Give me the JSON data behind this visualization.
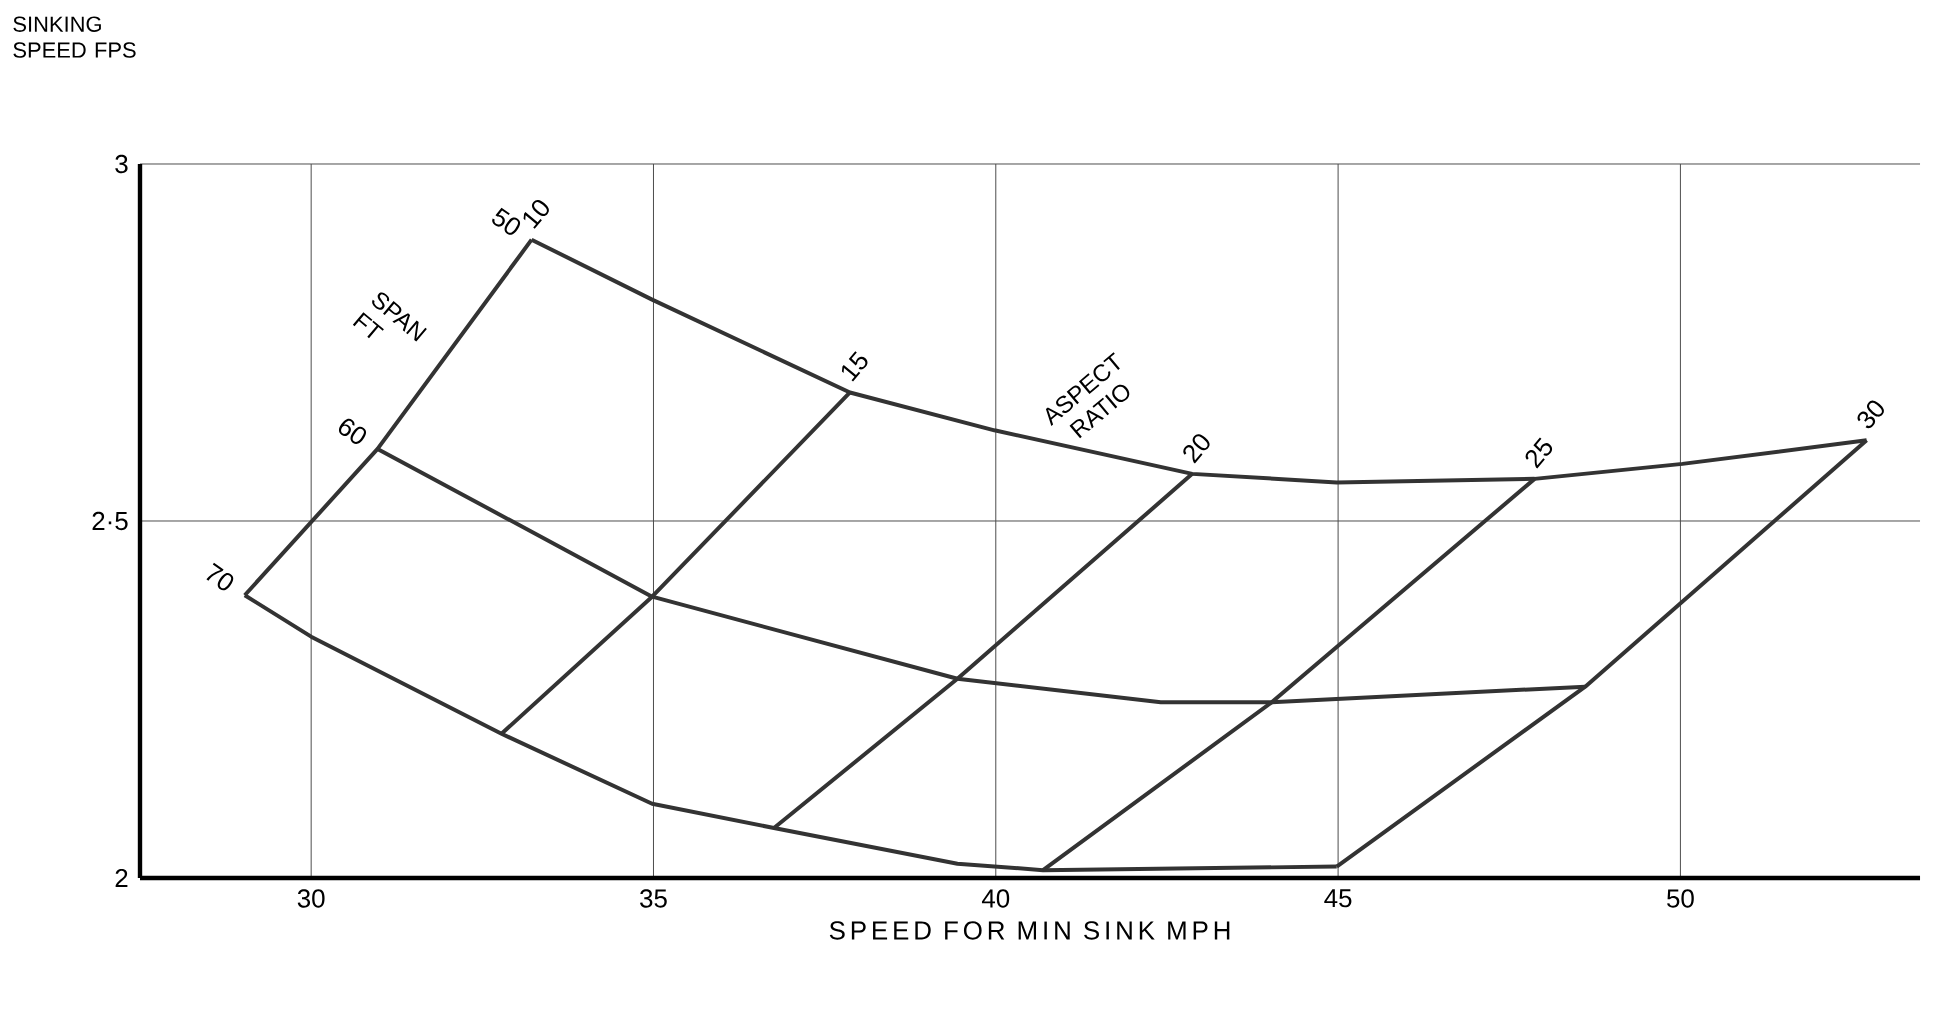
{
  "chart_data": {
    "type": "line",
    "xlabel": "SPEED FOR MIN SINK MPH",
    "ylabel": "SINKING SPEED FPS",
    "xlim": [
      27.5,
      53.5
    ],
    "ylim": [
      2,
      3
    ],
    "xticks": [
      30,
      35,
      40,
      45,
      50
    ],
    "yticks": [
      2,
      {
        "value": 2.5,
        "label": "2·5"
      },
      3
    ],
    "grid": true,
    "annotations": [
      "SPAN FT",
      "ASPECT RATIO"
    ],
    "series": [
      {
        "name": "50",
        "color": "#333333",
        "x": [
          33.22,
          34.98,
          37.87,
          39.98,
          42.87,
          44.98,
          47.87,
          50.03,
          52.72
        ],
        "values": [
          2.894,
          2.81,
          2.68,
          2.627,
          2.566,
          2.554,
          2.559,
          2.58,
          2.613
        ]
      },
      {
        "name": "60",
        "color": "#333333",
        "x": [
          30.97,
          34.98,
          39.44,
          42.41,
          44.03,
          48.61
        ],
        "values": [
          2.601,
          2.394,
          2.279,
          2.246,
          2.246,
          2.268
        ]
      },
      {
        "name": "70",
        "color": "#333333",
        "x": [
          29.03,
          30.0,
          32.78,
          34.98,
          36.76,
          39.44,
          40.69,
          44.98
        ],
        "values": [
          2.396,
          2.338,
          2.202,
          2.104,
          2.07,
          2.02,
          2.011,
          2.016
        ]
      },
      {
        "name": "10",
        "color": "#333333",
        "x": [
          33.22,
          30.97,
          29.03
        ],
        "values": [
          2.894,
          2.601,
          2.396
        ]
      },
      {
        "name": "15",
        "color": "#333333",
        "x": [
          37.87,
          34.98,
          32.78
        ],
        "values": [
          2.68,
          2.394,
          2.202
        ]
      },
      {
        "name": "20",
        "color": "#333333",
        "x": [
          42.87,
          39.44,
          36.76
        ],
        "values": [
          2.566,
          2.279,
          2.07
        ]
      },
      {
        "name": "25",
        "color": "#333333",
        "x": [
          47.87,
          44.03,
          40.69
        ],
        "values": [
          2.559,
          2.246,
          2.011
        ]
      },
      {
        "name": "30",
        "color": "#333333",
        "x": [
          52.72,
          48.61,
          44.98
        ],
        "values": [
          2.613,
          2.268,
          2.016
        ]
      }
    ]
  }
}
